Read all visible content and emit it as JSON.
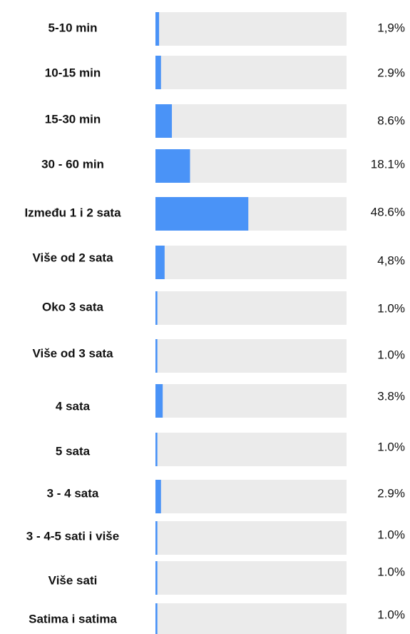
{
  "chart_data": {
    "type": "bar",
    "orientation": "horizontal",
    "categories": [
      "5-10 min",
      "10-15 min",
      "15-30 min",
      "30 - 60 min",
      "Između 1 i 2 sata",
      "Više od 2 sata",
      "Oko 3 sata",
      "Više od  3 sata",
      "4 sata",
      "5 sata",
      "3 - 4 sata",
      "3 - 4-5 sati i više",
      "Više sati",
      "Satima i satima"
    ],
    "values": [
      1.9,
      2.9,
      8.6,
      18.1,
      48.6,
      4.8,
      1.0,
      1.0,
      3.8,
      1.0,
      2.9,
      1.0,
      1.0,
      1.0
    ],
    "value_labels": [
      "1,9%",
      "2.9%",
      "8.6%",
      "18.1%",
      "48.6%",
      "4,8%",
      "1.0%",
      "1.0%",
      "3.8%",
      "1.0%",
      "2.9%",
      "1.0%",
      "1.0%",
      "1.0%"
    ],
    "xlim": [
      0,
      100
    ],
    "color": "#4a93f7",
    "track_color": "#ebebeb"
  }
}
